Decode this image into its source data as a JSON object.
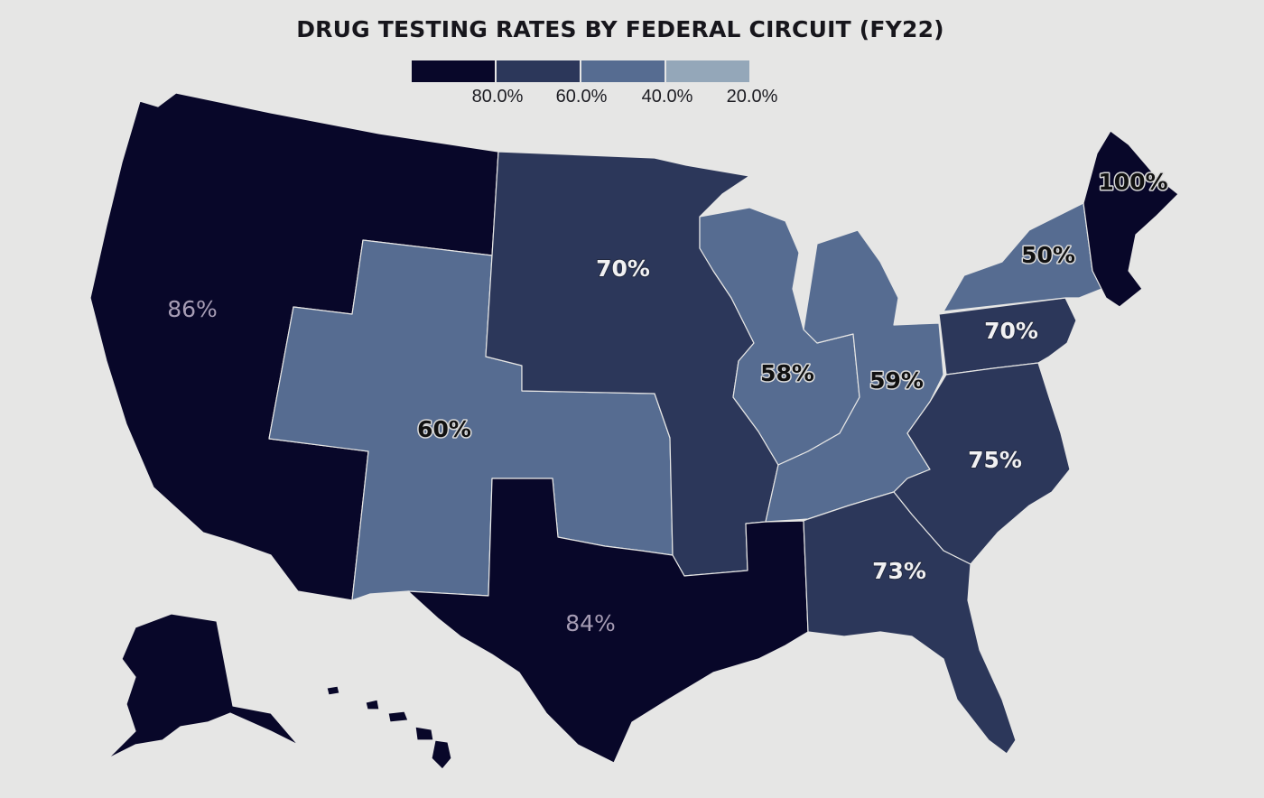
{
  "title": "DRUG TESTING RATES BY FEDERAL CIRCUIT (FY22)",
  "legend": {
    "swatch_colors": [
      "#080729",
      "#2c375a",
      "#566c91",
      "#94a7b9"
    ],
    "labels": [
      "80.0%",
      "60.0%",
      "40.0%",
      "20.0%"
    ]
  },
  "colors": {
    "background": "#e6e6e5",
    "level_80": "#080729",
    "level_60": "#2c375a",
    "level_40": "#566c91",
    "level_20": "#94a7b9"
  },
  "circuits": {
    "first": {
      "rate_label": "100%",
      "rate": 100
    },
    "second": {
      "rate_label": "50%",
      "rate": 50
    },
    "third": {
      "rate_label": "70%",
      "rate": 70
    },
    "fourth": {
      "rate_label": "75%",
      "rate": 75
    },
    "fifth": {
      "rate_label": "84%",
      "rate": 84
    },
    "sixth": {
      "rate_label": "59%",
      "rate": 59
    },
    "seventh": {
      "rate_label": "58%",
      "rate": 58
    },
    "eighth": {
      "rate_label": "70%",
      "rate": 70
    },
    "ninth": {
      "rate_label": "86%",
      "rate": 86
    },
    "tenth": {
      "rate_label": "60%",
      "rate": 60
    },
    "eleventh": {
      "rate_label": "73%",
      "rate": 73
    }
  }
}
